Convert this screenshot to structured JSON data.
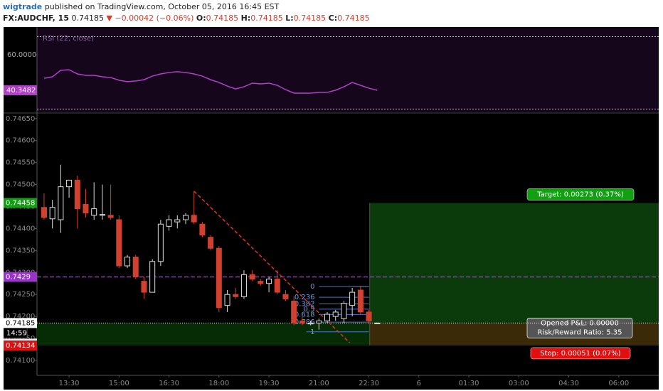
{
  "header": {
    "author": "wigtrade",
    "published": "published on TradingView.com, October 05, 2016 16:45 EST"
  },
  "symbol_line": {
    "symbol": "FX:AUDCHF, 15",
    "last": 0.74185,
    "change": "▼ −0.00042 (−0.06%)",
    "ohlc": [
      {
        "label": "O:",
        "value": 0.74185
      },
      {
        "label": "H:",
        "value": 0.74185
      },
      {
        "label": "L:",
        "value": 0.74185
      },
      {
        "label": "C:",
        "value": 0.74185
      }
    ]
  },
  "chart_data": [
    {
      "type": "candlestick",
      "open": [
        0.74448,
        0.74422,
        0.7442,
        0.74495,
        0.7451,
        0.74455,
        0.7443,
        0.7443,
        0.7443,
        0.7442,
        0.74315,
        0.74335,
        0.7428,
        0.74255,
        0.74325,
        0.74405,
        0.74415,
        0.7442,
        0.7443,
        0.7441,
        0.7438,
        0.74355,
        0.74225,
        0.7425,
        0.74245,
        0.74295,
        0.7428,
        0.74275,
        0.74285,
        0.7425,
        0.74235,
        0.7419,
        0.74183,
        0.74185,
        0.7419,
        0.742,
        0.74195,
        0.74225,
        0.7426,
        0.7421,
        0.74185
      ],
      "high": [
        0.7448,
        0.74465,
        0.74545,
        0.7451,
        0.7452,
        0.7449,
        0.74505,
        0.745,
        0.745,
        0.7443,
        0.7434,
        0.7434,
        0.7429,
        0.7433,
        0.7442,
        0.7443,
        0.7443,
        0.74435,
        0.74485,
        0.74415,
        0.74385,
        0.7436,
        0.7426,
        0.74265,
        0.74305,
        0.74305,
        0.74285,
        0.7429,
        0.74305,
        0.7426,
        0.74245,
        0.742,
        0.7419,
        0.74195,
        0.7421,
        0.74215,
        0.74235,
        0.74265,
        0.7427,
        0.74215,
        0.74186
      ],
      "low": [
        0.7442,
        0.744,
        0.7439,
        0.7447,
        0.744,
        0.74425,
        0.7442,
        0.7442,
        0.7442,
        0.7431,
        0.7431,
        0.74285,
        0.7424,
        0.74255,
        0.74315,
        0.74395,
        0.744,
        0.7441,
        0.7441,
        0.7438,
        0.7435,
        0.7421,
        0.7421,
        0.7424,
        0.7424,
        0.7428,
        0.7427,
        0.74255,
        0.7425,
        0.74235,
        0.7418,
        0.7418,
        0.7418,
        0.7417,
        0.74185,
        0.7419,
        0.74185,
        0.742,
        0.74205,
        0.74185,
        0.74184
      ],
      "close": [
        0.74425,
        0.74448,
        0.74495,
        0.7451,
        0.74445,
        0.74435,
        0.74445,
        0.74432,
        0.74425,
        0.74315,
        0.74335,
        0.7429,
        0.74255,
        0.74325,
        0.7441,
        0.7442,
        0.7442,
        0.7443,
        0.74415,
        0.74385,
        0.74355,
        0.7422,
        0.7425,
        0.74245,
        0.74295,
        0.74285,
        0.74275,
        0.74285,
        0.74255,
        0.7424,
        0.74185,
        0.74185,
        0.74185,
        0.7419,
        0.74205,
        0.7421,
        0.7423,
        0.74255,
        0.7421,
        0.7419,
        0.74185
      ],
      "up_color": "#dddddd",
      "down_color": "#d2402f",
      "xlim": [
        -0.85,
        73.8
      ],
      "xticks": [
        {
          "value": 3,
          "label": "13:30"
        },
        {
          "value": 9,
          "label": "15:00"
        },
        {
          "value": 15,
          "label": "16:30"
        },
        {
          "value": 21,
          "label": "18:00"
        },
        {
          "value": 27,
          "label": "19:30"
        },
        {
          "value": 33,
          "label": "21:00"
        },
        {
          "value": 39,
          "label": "22:30"
        },
        {
          "value": 45,
          "label": "6"
        },
        {
          "value": 51,
          "label": "01:30"
        },
        {
          "value": 57,
          "label": "03:00"
        },
        {
          "value": 63,
          "label": "04:30"
        },
        {
          "value": 69,
          "label": "06:00"
        }
      ],
      "ylim": [
        0.74066,
        0.74661
      ],
      "yticks": [
        {
          "value": 0.741,
          "label": "0.74100"
        },
        {
          "value": 0.7415,
          "label": "0.74150"
        },
        {
          "value": 0.742,
          "label": "0.74200"
        },
        {
          "value": 0.7425,
          "label": "0.74250"
        },
        {
          "value": 0.743,
          "label": "0.74300"
        },
        {
          "value": 0.7435,
          "label": "0.74350"
        },
        {
          "value": 0.744,
          "label": "0.74400"
        },
        {
          "value": 0.7445,
          "label": "0.74450"
        },
        {
          "value": 0.745,
          "label": "0.74500"
        },
        {
          "value": 0.7455,
          "label": "0.74550"
        },
        {
          "value": 0.746,
          "label": "0.74600"
        },
        {
          "value": 0.7465,
          "label": "0.74650"
        }
      ],
      "price_lines": [
        {
          "value": 0.7429,
          "color": "#9933cc"
        },
        {
          "value": 0.74185,
          "color": "#ffffff"
        }
      ],
      "countdown": "14:59",
      "position": {
        "entry": 0.74185,
        "target": 0.74458,
        "stop": 0.74134,
        "target_label": "Target: 0.00273 (0.37%)",
        "stop_label": "Stop: 0.00051 (0.07%)",
        "pnl_label": "Opened P&L: 0.00000",
        "rr_label": "Risk/Reward Ratio: 5.35"
      },
      "fib": {
        "high": 0.74268,
        "low": 0.74165,
        "levels": [
          0,
          0.236,
          0.382,
          0.5,
          0.618,
          0.786,
          1
        ]
      },
      "trendline": [
        [
          18,
          0.74485
        ],
        [
          36.7,
          0.7414
        ]
      ]
    },
    {
      "type": "line",
      "title": "RSI (22, close)",
      "series": [
        {
          "name": "RSI",
          "color": "#b040c8",
          "values": [
            47.0,
            47.8,
            51.4,
            51.7,
            49.4,
            48.6,
            48.6,
            47.8,
            47.4,
            45.9,
            45.1,
            45.5,
            46.2,
            48.2,
            49.4,
            50.2,
            50.6,
            50.2,
            49.4,
            48.2,
            46.2,
            44.7,
            42.7,
            41.1,
            42.3,
            44.3,
            43.9,
            44.3,
            43.1,
            40.7,
            38.8,
            38.8,
            38.8,
            39.2,
            39.2,
            40.4,
            42.3,
            44.7,
            43.1,
            41.5,
            40.3482
          ]
        }
      ],
      "ylim": [
        28.17,
        74.54
      ],
      "yticks": [
        {
          "value": 60,
          "label": "60.0000"
        }
      ],
      "levels": [
        70,
        30
      ]
    }
  ]
}
